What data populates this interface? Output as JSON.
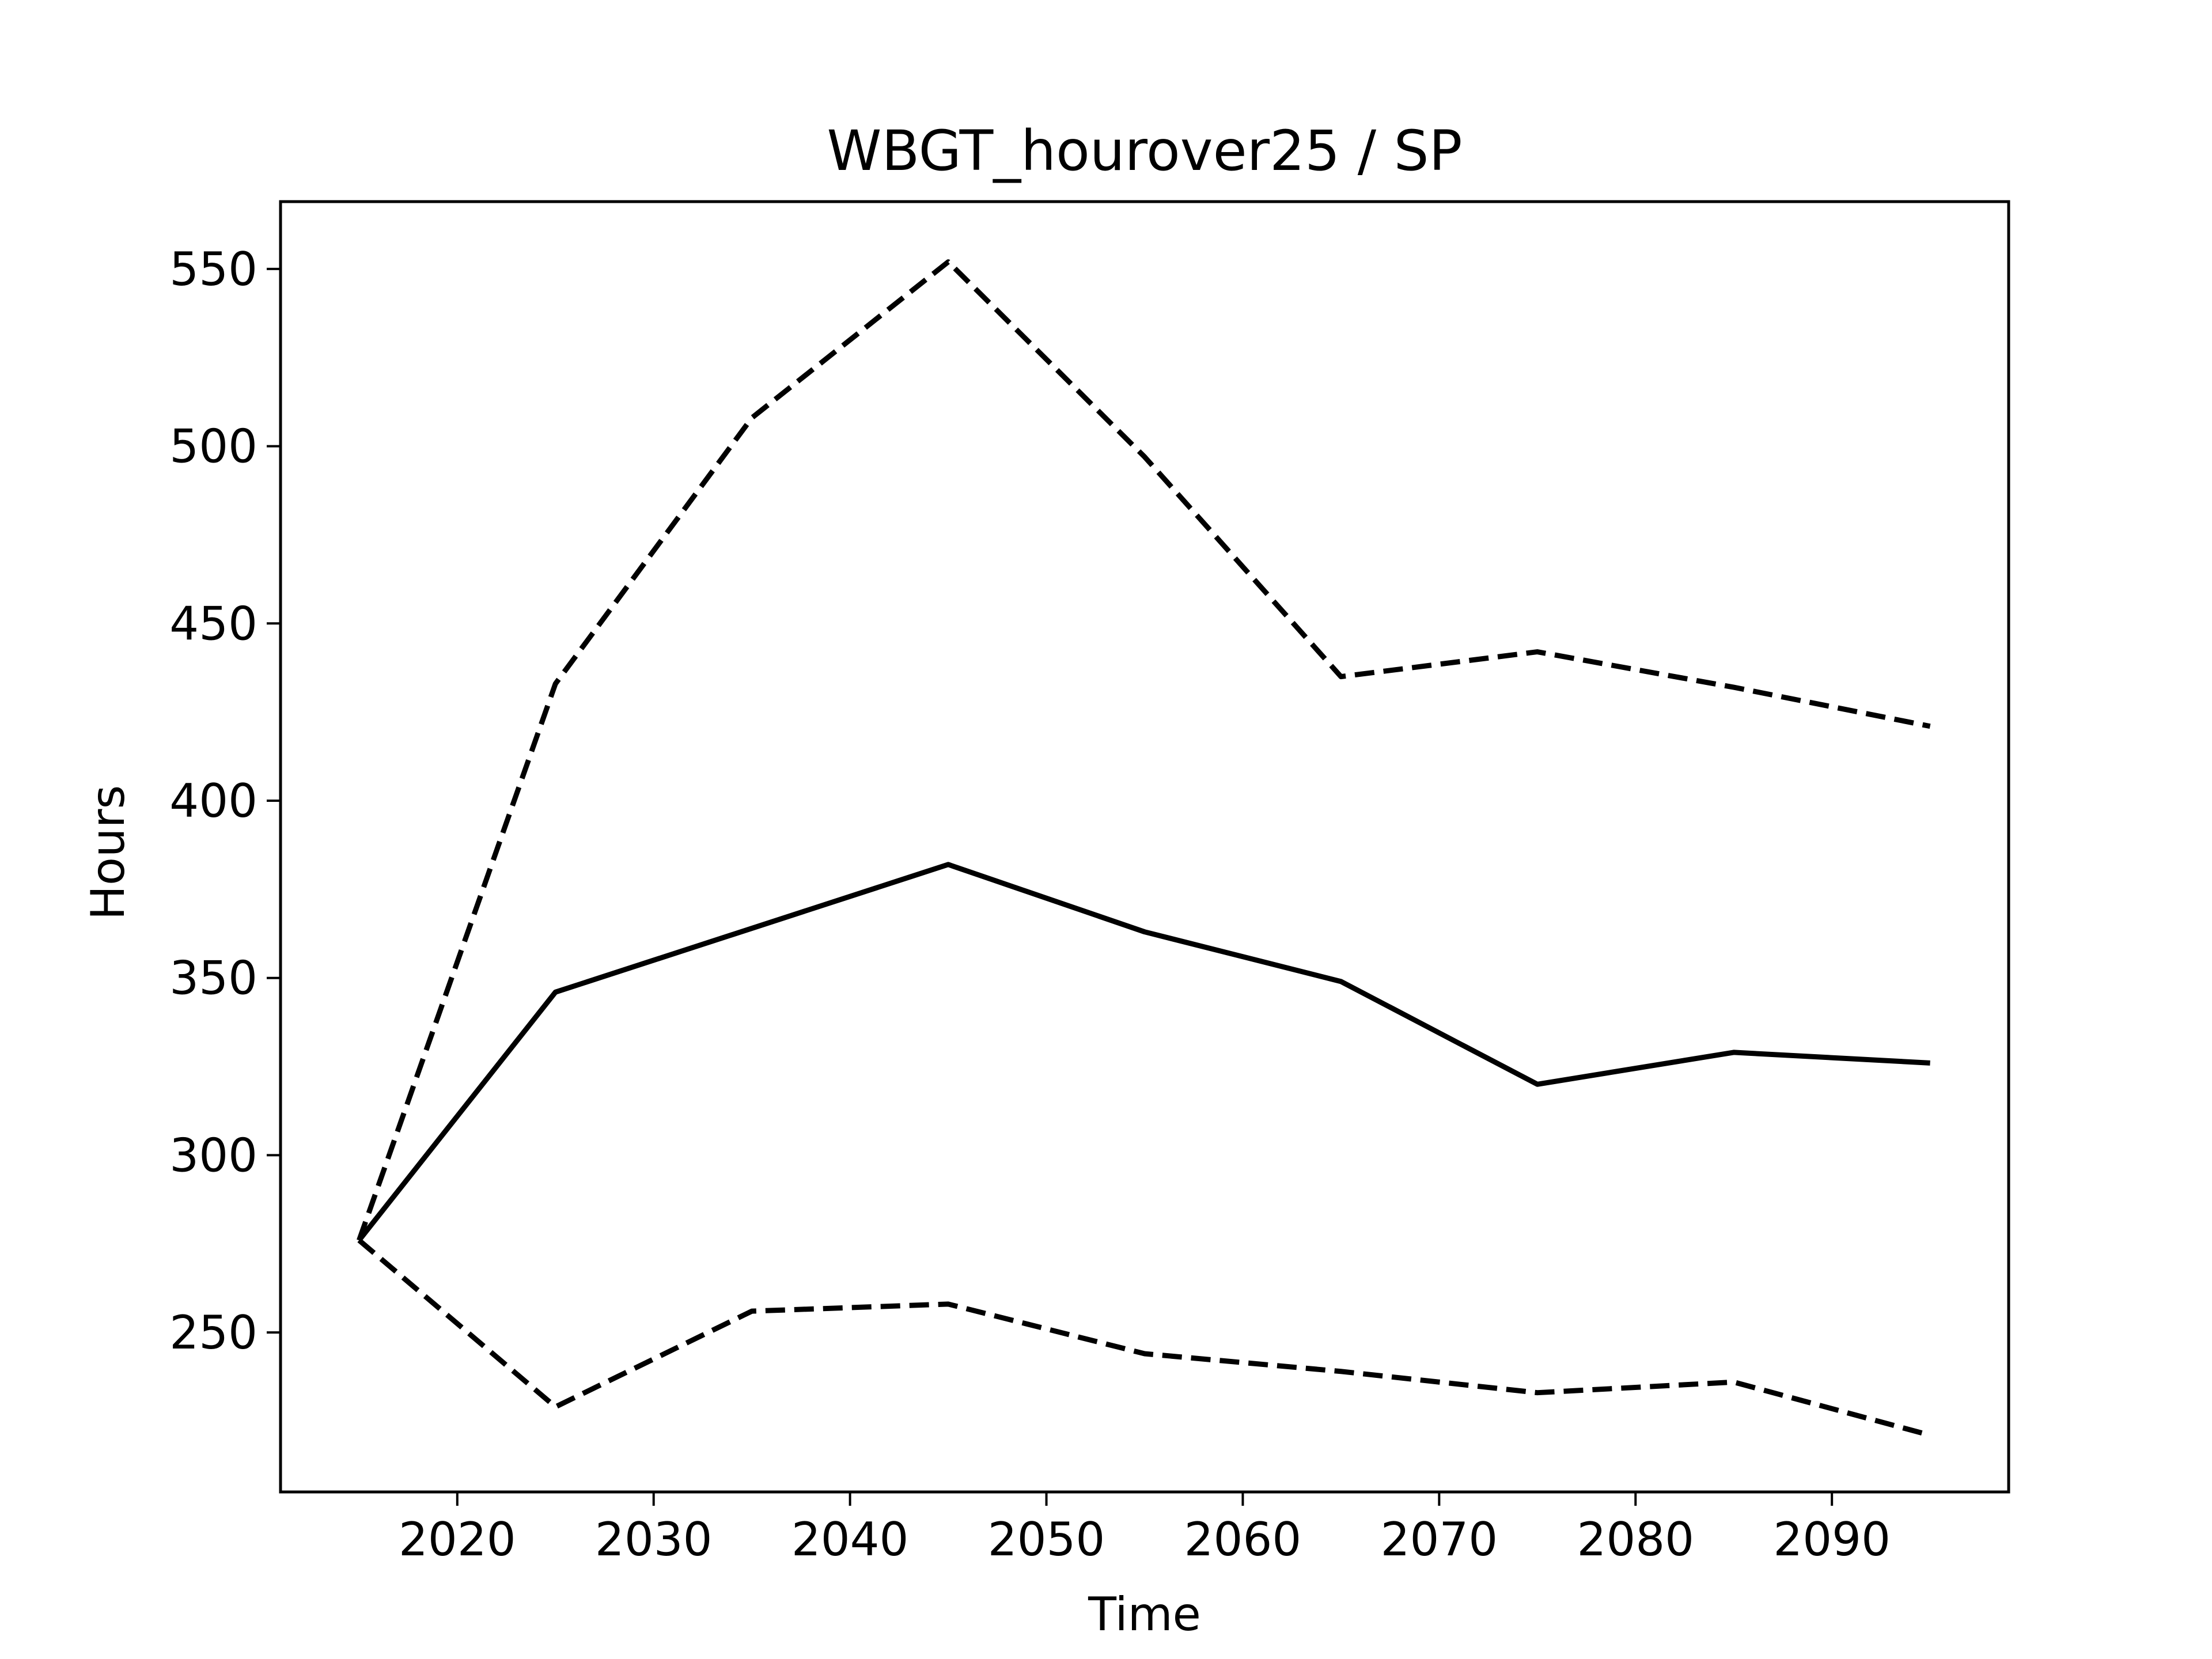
{
  "chart_data": {
    "type": "line",
    "title": "WBGT_hourover25 / SP",
    "xlabel": "Time",
    "ylabel": "Hours",
    "x": [
      2015,
      2025,
      2035,
      2045,
      2055,
      2065,
      2075,
      2085,
      2095
    ],
    "xlim": [
      2011,
      2099
    ],
    "ylim": [
      205,
      569
    ],
    "xticks": [
      2020,
      2030,
      2040,
      2050,
      2060,
      2070,
      2080,
      2090
    ],
    "yticks": [
      250,
      300,
      350,
      400,
      450,
      500,
      550
    ],
    "grid": false,
    "series": [
      {
        "style": "solid",
        "color": "#000000",
        "values": [
          276,
          346,
          364,
          382,
          363,
          349,
          320,
          329,
          326
        ]
      },
      {
        "style": "dashed",
        "color": "#000000",
        "values": [
          276,
          433,
          508,
          552,
          497,
          435,
          442,
          432,
          421
        ]
      },
      {
        "style": "dashed",
        "color": "#000000",
        "values": [
          276,
          229,
          256,
          258,
          244,
          239,
          233,
          236,
          221
        ]
      }
    ]
  }
}
